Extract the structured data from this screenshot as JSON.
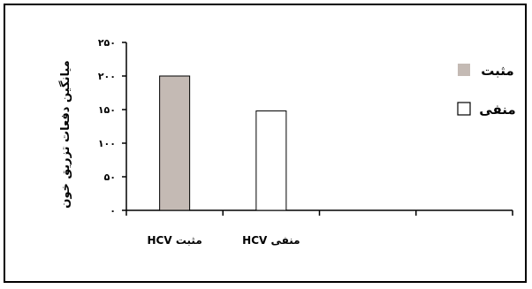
{
  "chart_data": {
    "type": "bar",
    "categories": [
      "مثبت HCV",
      "منفی HCV",
      "",
      ""
    ],
    "series": [
      {
        "name": "مثبت",
        "values": [
          200,
          null,
          null,
          null
        ],
        "color": "#c4bab4"
      },
      {
        "name": "منفی",
        "values": [
          null,
          148,
          null,
          null
        ],
        "color": "#ffffff"
      }
    ],
    "ylabel": "میانگین دفعات تزریق خون",
    "yticks": [
      0,
      50,
      100,
      150,
      200,
      250
    ],
    "ytick_labels": [
      "۰",
      "۵۰",
      "۱۰۰",
      "۱۵۰",
      "۲۰۰",
      "۲۵۰"
    ],
    "ylim": [
      0,
      250
    ],
    "grid": false,
    "legend": "right"
  }
}
